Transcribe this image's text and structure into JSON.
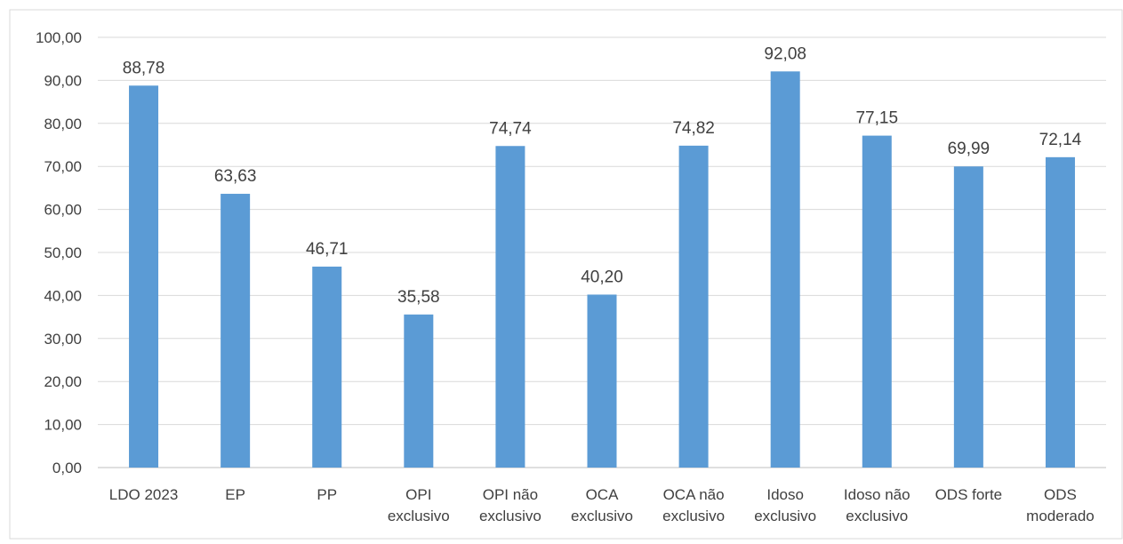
{
  "chart_data": {
    "type": "bar",
    "title": "",
    "xlabel": "",
    "ylabel": "",
    "ylim": [
      0,
      100
    ],
    "y_tick_step": 10,
    "y_tick_labels": [
      "0,00",
      "10,00",
      "20,00",
      "30,00",
      "40,00",
      "50,00",
      "60,00",
      "70,00",
      "80,00",
      "90,00",
      "100,00"
    ],
    "grid": true,
    "legend": "none",
    "bar_color": "#5B9BD5",
    "categories": [
      [
        "LDO 2023"
      ],
      [
        "EP"
      ],
      [
        "PP"
      ],
      [
        "OPI",
        "exclusivo"
      ],
      [
        "OPI não",
        "exclusivo"
      ],
      [
        "OCA",
        "exclusivo"
      ],
      [
        "OCA não",
        "exclusivo"
      ],
      [
        "Idoso",
        "exclusivo"
      ],
      [
        "Idoso não",
        "exclusivo"
      ],
      [
        "ODS forte"
      ],
      [
        "ODS",
        "moderado"
      ]
    ],
    "values": [
      88.78,
      63.63,
      46.71,
      35.58,
      74.74,
      40.2,
      74.82,
      92.08,
      77.15,
      69.99,
      72.14
    ],
    "data_labels": [
      "88,78",
      "63,63",
      "46,71",
      "35,58",
      "74,74",
      "40,20",
      "74,82",
      "92,08",
      "77,15",
      "69,99",
      "72,14"
    ]
  }
}
